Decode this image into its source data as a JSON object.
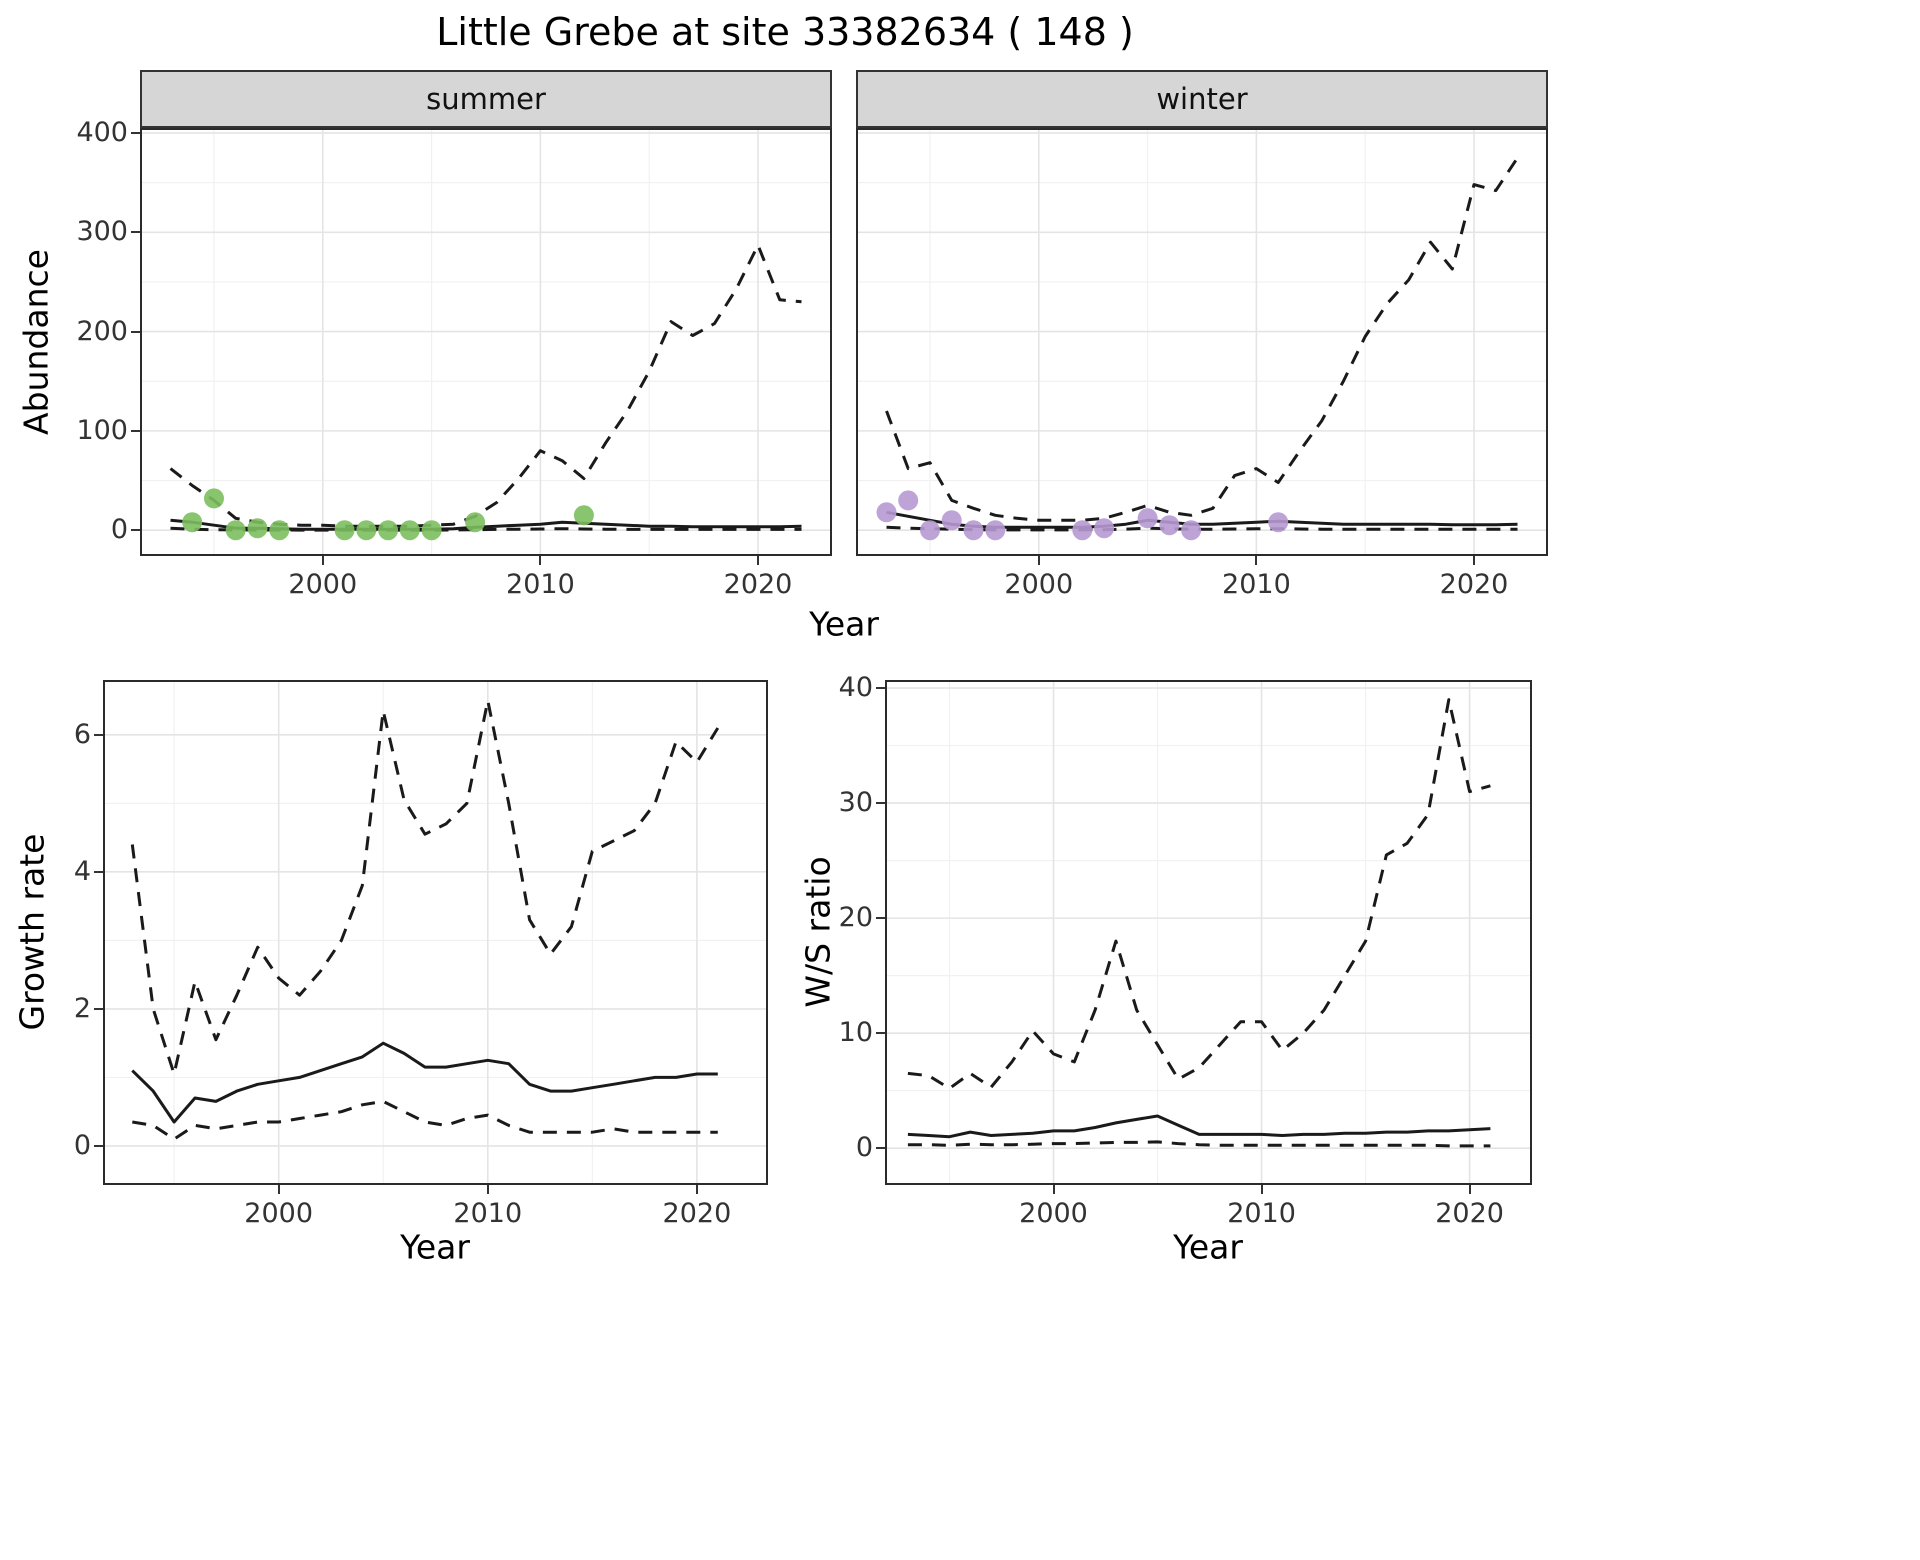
{
  "title": "Little Grebe at site 33382634 ( 148 )",
  "facets": [
    {
      "label": "summer"
    },
    {
      "label": "winter"
    }
  ],
  "axes": {
    "abundance_ylabel": "Abundance",
    "top_xlabel": "Year",
    "growth_ylabel": "Growth rate",
    "bottom_left_xlabel": "Year",
    "ws_ylabel": "W/S ratio",
    "bottom_right_xlabel": "Year"
  },
  "colors": {
    "line": "#1a1a1a",
    "summer_points": "#7cbe5e",
    "winter_points": "#b79ad1",
    "strip_bg": "#d6d6d6",
    "panel_border": "#2b2b2b",
    "grid_major": "#e4e4e4",
    "grid_minor": "#f1f1f1"
  },
  "chart_data": [
    {
      "id": "summer",
      "type": "line",
      "facet_label": "summer",
      "xlabel": "Year",
      "ylabel": "Abundance",
      "xlim": [
        1991.6,
        2023.4
      ],
      "ylim": [
        -26,
        405
      ],
      "xticks": [
        2000,
        2010,
        2020
      ],
      "yticks": [
        0,
        100,
        200,
        300,
        400
      ],
      "xminor": [
        1995,
        2005,
        2015
      ],
      "yminor": [
        50,
        150,
        250,
        350
      ],
      "x": [
        1993,
        1994,
        1995,
        1996,
        1997,
        1998,
        1999,
        2000,
        2001,
        2002,
        2003,
        2004,
        2005,
        2006,
        2007,
        2008,
        2009,
        2010,
        2011,
        2012,
        2013,
        2014,
        2015,
        2016,
        2017,
        2018,
        2019,
        2020,
        2021,
        2022
      ],
      "series": [
        {
          "name": "upper_ci",
          "style": "dashed",
          "values": [
            62,
            45,
            30,
            12,
            8,
            6,
            5,
            5,
            4,
            4,
            4,
            4,
            5,
            6,
            14,
            28,
            52,
            80,
            70,
            52,
            88,
            120,
            160,
            210,
            196,
            208,
            243,
            287,
            232,
            230
          ]
        },
        {
          "name": "median",
          "style": "solid",
          "values": [
            10,
            8,
            5,
            2,
            2,
            1.5,
            1,
            1,
            1,
            1,
            1,
            1,
            1,
            1.5,
            3,
            4,
            5,
            6,
            8,
            7,
            6,
            5,
            4,
            4,
            3.5,
            3.5,
            3.5,
            3.5,
            3.5,
            4
          ]
        },
        {
          "name": "lower_ci",
          "style": "dashed",
          "values": [
            2,
            1,
            0.5,
            0.3,
            0.2,
            0.2,
            0.1,
            0.1,
            0.1,
            0.1,
            0.1,
            0.1,
            0.1,
            0.2,
            0.5,
            0.8,
            1,
            1.2,
            1.5,
            1.2,
            1,
            0.8,
            0.8,
            0.8,
            0.8,
            0.8,
            0.8,
            0.8,
            0.8,
            0.8
          ]
        }
      ],
      "points": {
        "name": "observed_counts",
        "color": "#7cbe5e",
        "x": [
          1994,
          1995,
          1996,
          1997,
          1998,
          2001,
          2002,
          2003,
          2004,
          2005,
          2007,
          2012
        ],
        "y": [
          8,
          32,
          0,
          2,
          0,
          0,
          0,
          0,
          0,
          0,
          8,
          15
        ]
      }
    },
    {
      "id": "winter",
      "type": "line",
      "facet_label": "winter",
      "xlabel": "Year",
      "ylabel": "Abundance",
      "xlim": [
        1991.6,
        2023.4
      ],
      "ylim": [
        -26,
        405
      ],
      "xticks": [
        2000,
        2010,
        2020
      ],
      "yticks": [
        0,
        100,
        200,
        300,
        400
      ],
      "xminor": [
        1995,
        2005,
        2015
      ],
      "yminor": [
        50,
        150,
        250,
        350
      ],
      "x": [
        1993,
        1994,
        1995,
        1996,
        1997,
        1998,
        1999,
        2000,
        2001,
        2002,
        2003,
        2004,
        2005,
        2006,
        2007,
        2008,
        2009,
        2010,
        2011,
        2012,
        2013,
        2014,
        2015,
        2016,
        2017,
        2018,
        2019,
        2020,
        2021,
        2022
      ],
      "series": [
        {
          "name": "upper_ci",
          "style": "dashed",
          "values": [
            120,
            62,
            68,
            30,
            22,
            15,
            12,
            10,
            10,
            10,
            12,
            18,
            25,
            18,
            15,
            22,
            55,
            62,
            48,
            80,
            110,
            150,
            195,
            228,
            252,
            290,
            263,
            348,
            342,
            375
          ]
        },
        {
          "name": "median",
          "style": "solid",
          "values": [
            18,
            14,
            10,
            6,
            4,
            3,
            3,
            3,
            3,
            3,
            4,
            6,
            10,
            8,
            6,
            6,
            7,
            8,
            9,
            8,
            7,
            6,
            6,
            6,
            6,
            6,
            5.5,
            5.5,
            5.5,
            6
          ]
        },
        {
          "name": "lower_ci",
          "style": "dashed",
          "values": [
            3,
            2,
            1.5,
            1,
            0.5,
            0.3,
            0.3,
            0.3,
            0.3,
            0.3,
            0.5,
            1,
            2,
            1.5,
            1,
            1,
            1.2,
            1.5,
            1.5,
            1.2,
            1,
            1,
            1,
            1,
            1,
            1,
            1,
            1,
            1,
            1
          ]
        }
      ],
      "points": {
        "name": "observed_counts",
        "color": "#b79ad1",
        "x": [
          1993,
          1994,
          1995,
          1996,
          1997,
          1998,
          2002,
          2003,
          2005,
          2006,
          2007,
          2011
        ],
        "y": [
          18,
          30,
          0,
          10,
          0,
          0,
          0,
          2,
          12,
          5,
          0,
          8
        ]
      }
    },
    {
      "id": "growth",
      "type": "line",
      "xlabel": "Year",
      "ylabel": "Growth rate",
      "xlim": [
        1991.6,
        2023.4
      ],
      "ylim": [
        -0.57,
        6.8
      ],
      "xticks": [
        2000,
        2010,
        2020
      ],
      "yticks": [
        0,
        2,
        4,
        6
      ],
      "xminor": [
        1995,
        2005,
        2015
      ],
      "yminor": [
        1,
        3,
        5
      ],
      "x": [
        1993,
        1994,
        1995,
        1996,
        1997,
        1998,
        1999,
        2000,
        2001,
        2002,
        2003,
        2004,
        2005,
        2006,
        2007,
        2008,
        2009,
        2010,
        2011,
        2012,
        2013,
        2014,
        2015,
        2016,
        2017,
        2018,
        2019,
        2020,
        2021
      ],
      "series": [
        {
          "name": "upper_ci",
          "style": "dashed",
          "values": [
            4.4,
            2.0,
            1.05,
            2.4,
            1.55,
            2.2,
            2.9,
            2.45,
            2.2,
            2.55,
            3.0,
            3.8,
            6.35,
            5.05,
            4.55,
            4.7,
            5.0,
            6.5,
            5.0,
            3.3,
            2.8,
            3.2,
            4.3,
            4.45,
            4.6,
            5.0,
            5.9,
            5.6,
            6.1
          ]
        },
        {
          "name": "median",
          "style": "solid",
          "values": [
            1.1,
            0.8,
            0.35,
            0.7,
            0.65,
            0.8,
            0.9,
            0.95,
            1.0,
            1.1,
            1.2,
            1.3,
            1.5,
            1.35,
            1.15,
            1.15,
            1.2,
            1.25,
            1.2,
            0.9,
            0.8,
            0.8,
            0.85,
            0.9,
            0.95,
            1.0,
            1.0,
            1.05,
            1.05
          ]
        },
        {
          "name": "lower_ci",
          "style": "dashed",
          "values": [
            0.35,
            0.3,
            0.1,
            0.3,
            0.25,
            0.3,
            0.35,
            0.35,
            0.4,
            0.45,
            0.5,
            0.6,
            0.65,
            0.5,
            0.35,
            0.3,
            0.4,
            0.45,
            0.3,
            0.2,
            0.2,
            0.2,
            0.2,
            0.25,
            0.2,
            0.2,
            0.2,
            0.2,
            0.2
          ]
        }
      ]
    },
    {
      "id": "ws",
      "type": "line",
      "xlabel": "Year",
      "ylabel": "W/S ratio",
      "xlim": [
        1991.9,
        2023.0
      ],
      "ylim": [
        -3.2,
        40.7
      ],
      "xticks": [
        2000,
        2010,
        2020
      ],
      "yticks": [
        0,
        10,
        20,
        30,
        40
      ],
      "xminor": [
        1995,
        2005,
        2015
      ],
      "yminor": [
        5,
        15,
        25,
        35
      ],
      "x": [
        1993,
        1994,
        1995,
        1996,
        1997,
        1998,
        1999,
        2000,
        2001,
        2002,
        2003,
        2004,
        2005,
        2006,
        2007,
        2008,
        2009,
        2010,
        2011,
        2012,
        2013,
        2014,
        2015,
        2016,
        2017,
        2018,
        2019,
        2020,
        2021
      ],
      "series": [
        {
          "name": "upper_ci",
          "style": "dashed",
          "values": [
            6.5,
            6.3,
            5.2,
            6.5,
            5.3,
            7.5,
            10.2,
            8.2,
            7.5,
            12,
            18,
            12,
            9,
            6,
            7,
            9,
            11,
            11,
            8.5,
            10,
            12,
            15,
            18,
            25.5,
            26.5,
            29,
            39,
            31,
            31.5
          ]
        },
        {
          "name": "median",
          "style": "solid",
          "values": [
            1.2,
            1.1,
            1.0,
            1.4,
            1.1,
            1.2,
            1.3,
            1.5,
            1.5,
            1.8,
            2.2,
            2.5,
            2.8,
            2.0,
            1.2,
            1.2,
            1.2,
            1.2,
            1.1,
            1.2,
            1.2,
            1.3,
            1.3,
            1.4,
            1.4,
            1.5,
            1.5,
            1.6,
            1.7
          ]
        },
        {
          "name": "lower_ci",
          "style": "dashed",
          "values": [
            0.3,
            0.3,
            0.25,
            0.35,
            0.3,
            0.3,
            0.35,
            0.4,
            0.4,
            0.45,
            0.5,
            0.5,
            0.55,
            0.4,
            0.3,
            0.25,
            0.25,
            0.25,
            0.25,
            0.25,
            0.25,
            0.25,
            0.25,
            0.25,
            0.25,
            0.25,
            0.2,
            0.2,
            0.2
          ]
        }
      ]
    }
  ]
}
